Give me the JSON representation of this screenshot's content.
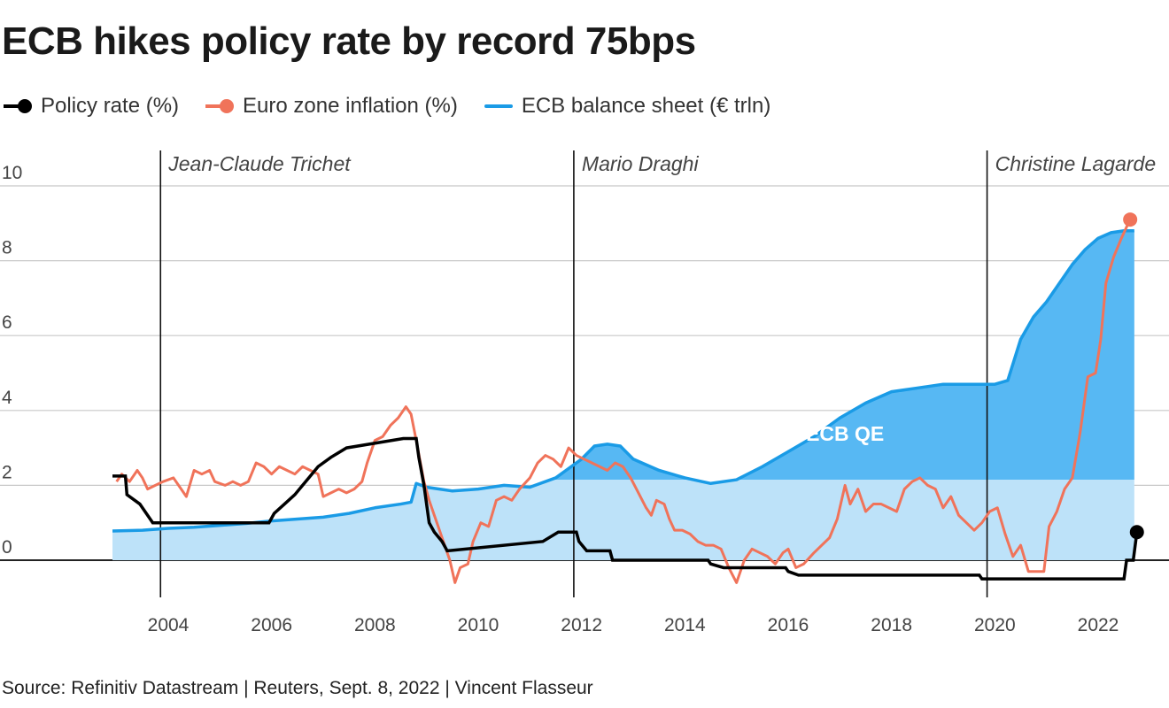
{
  "header": {
    "title": "ECB hikes policy rate by record 75bps"
  },
  "legend": [
    {
      "label": "Policy rate (%)",
      "color": "#000000",
      "icon": "dot-line-icon"
    },
    {
      "label": "Euro zone inflation (%)",
      "color": "#f0735a",
      "icon": "dot-line-icon"
    },
    {
      "label": "ECB balance sheet (€ trln)",
      "color": "#1a9be6",
      "icon": "line-icon"
    }
  ],
  "footer": {
    "source": "Source: Refinitiv Datastream | Reuters, Sept. 8, 2022 | Vincent Flasseur"
  },
  "chart_data": {
    "type": "line",
    "title": "ECB hikes policy rate by record 75bps",
    "xlim": [
      2002.9,
      2022.7
    ],
    "ylim": [
      -1,
      10
    ],
    "x_ticks": [
      2004,
      2006,
      2008,
      2010,
      2012,
      2014,
      2016,
      2018,
      2020,
      2022
    ],
    "y_ticks": [
      0,
      2,
      4,
      6,
      8,
      10
    ],
    "grid": true,
    "legend_position": "top-left",
    "annotations": {
      "presidents": [
        {
          "label": "Jean-Claude Trichet",
          "x": 2003.85
        },
        {
          "label": "Mario Draghi",
          "x": 2011.85
        },
        {
          "label": "Christine Lagarde",
          "x": 2019.85
        }
      ],
      "qe_label": "ECB QE",
      "qe_label_x": 2017.1,
      "qe_label_y": 3.0,
      "qe_threshold": 2.15
    },
    "series": [
      {
        "name": "Policy rate (%)",
        "color": "#000000",
        "type": "step",
        "points": [
          [
            2002.92,
            2.25
          ],
          [
            2003.17,
            2.25
          ],
          [
            2003.2,
            1.75
          ],
          [
            2003.45,
            1.5
          ],
          [
            2003.7,
            1.0
          ],
          [
            2005.95,
            1.0
          ],
          [
            2006.05,
            1.25
          ],
          [
            2006.25,
            1.5
          ],
          [
            2006.45,
            1.75
          ],
          [
            2006.6,
            2.0
          ],
          [
            2006.75,
            2.25
          ],
          [
            2006.9,
            2.5
          ],
          [
            2007.15,
            2.75
          ],
          [
            2007.45,
            3.0
          ],
          [
            2008.55,
            3.25
          ],
          [
            2008.8,
            3.25
          ],
          [
            2008.85,
            2.75
          ],
          [
            2008.95,
            2.0
          ],
          [
            2009.05,
            1.0
          ],
          [
            2009.15,
            0.75
          ],
          [
            2009.3,
            0.5
          ],
          [
            2009.4,
            0.25
          ],
          [
            2011.25,
            0.5
          ],
          [
            2011.55,
            0.75
          ],
          [
            2011.9,
            0.75
          ],
          [
            2011.95,
            0.5
          ],
          [
            2012.1,
            0.25
          ],
          [
            2012.55,
            0.25
          ],
          [
            2012.6,
            0.0
          ],
          [
            2014.45,
            0.0
          ],
          [
            2014.5,
            -0.1
          ],
          [
            2014.75,
            -0.2
          ],
          [
            2015.95,
            -0.2
          ],
          [
            2016.0,
            -0.3
          ],
          [
            2016.2,
            -0.4
          ],
          [
            2019.7,
            -0.4
          ],
          [
            2019.75,
            -0.5
          ],
          [
            2022.5,
            -0.5
          ],
          [
            2022.55,
            0.0
          ],
          [
            2022.68,
            0.0
          ],
          [
            2022.75,
            0.75
          ]
        ]
      },
      {
        "name": "Euro zone inflation (%)",
        "color": "#f0735a",
        "type": "line",
        "points": [
          [
            2003.0,
            2.1
          ],
          [
            2003.1,
            2.3
          ],
          [
            2003.25,
            2.1
          ],
          [
            2003.4,
            2.4
          ],
          [
            2003.5,
            2.2
          ],
          [
            2003.6,
            1.9
          ],
          [
            2003.75,
            2.0
          ],
          [
            2003.9,
            2.1
          ],
          [
            2004.1,
            2.2
          ],
          [
            2004.25,
            1.9
          ],
          [
            2004.35,
            1.7
          ],
          [
            2004.5,
            2.4
          ],
          [
            2004.65,
            2.3
          ],
          [
            2004.8,
            2.4
          ],
          [
            2004.9,
            2.1
          ],
          [
            2005.1,
            2.0
          ],
          [
            2005.25,
            2.1
          ],
          [
            2005.4,
            2.0
          ],
          [
            2005.55,
            2.1
          ],
          [
            2005.7,
            2.6
          ],
          [
            2005.85,
            2.5
          ],
          [
            2006.0,
            2.3
          ],
          [
            2006.15,
            2.5
          ],
          [
            2006.3,
            2.4
          ],
          [
            2006.45,
            2.3
          ],
          [
            2006.6,
            2.5
          ],
          [
            2006.75,
            2.4
          ],
          [
            2006.9,
            2.3
          ],
          [
            2007.0,
            1.7
          ],
          [
            2007.15,
            1.8
          ],
          [
            2007.3,
            1.9
          ],
          [
            2007.45,
            1.8
          ],
          [
            2007.6,
            1.9
          ],
          [
            2007.75,
            2.1
          ],
          [
            2007.85,
            2.6
          ],
          [
            2008.0,
            3.2
          ],
          [
            2008.15,
            3.3
          ],
          [
            2008.3,
            3.6
          ],
          [
            2008.45,
            3.8
          ],
          [
            2008.6,
            4.1
          ],
          [
            2008.7,
            3.9
          ],
          [
            2008.8,
            3.2
          ],
          [
            2008.95,
            2.1
          ],
          [
            2009.05,
            1.6
          ],
          [
            2009.15,
            1.2
          ],
          [
            2009.3,
            0.6
          ],
          [
            2009.45,
            0.0
          ],
          [
            2009.55,
            -0.6
          ],
          [
            2009.65,
            -0.2
          ],
          [
            2009.8,
            -0.1
          ],
          [
            2009.9,
            0.5
          ],
          [
            2010.05,
            1.0
          ],
          [
            2010.2,
            0.9
          ],
          [
            2010.35,
            1.6
          ],
          [
            2010.5,
            1.7
          ],
          [
            2010.65,
            1.6
          ],
          [
            2010.8,
            1.9
          ],
          [
            2011.0,
            2.2
          ],
          [
            2011.15,
            2.6
          ],
          [
            2011.3,
            2.8
          ],
          [
            2011.45,
            2.7
          ],
          [
            2011.6,
            2.5
          ],
          [
            2011.75,
            3.0
          ],
          [
            2011.9,
            2.8
          ],
          [
            2012.05,
            2.7
          ],
          [
            2012.2,
            2.6
          ],
          [
            2012.35,
            2.5
          ],
          [
            2012.5,
            2.4
          ],
          [
            2012.65,
            2.6
          ],
          [
            2012.8,
            2.5
          ],
          [
            2012.95,
            2.2
          ],
          [
            2013.1,
            1.8
          ],
          [
            2013.25,
            1.4
          ],
          [
            2013.35,
            1.2
          ],
          [
            2013.45,
            1.6
          ],
          [
            2013.6,
            1.5
          ],
          [
            2013.7,
            1.1
          ],
          [
            2013.8,
            0.8
          ],
          [
            2013.95,
            0.8
          ],
          [
            2014.1,
            0.7
          ],
          [
            2014.25,
            0.5
          ],
          [
            2014.4,
            0.4
          ],
          [
            2014.55,
            0.4
          ],
          [
            2014.7,
            0.3
          ],
          [
            2014.85,
            -0.2
          ],
          [
            2015.0,
            -0.6
          ],
          [
            2015.15,
            0.0
          ],
          [
            2015.3,
            0.3
          ],
          [
            2015.45,
            0.2
          ],
          [
            2015.6,
            0.1
          ],
          [
            2015.75,
            -0.1
          ],
          [
            2015.9,
            0.2
          ],
          [
            2016.0,
            0.3
          ],
          [
            2016.15,
            -0.2
          ],
          [
            2016.3,
            -0.1
          ],
          [
            2016.5,
            0.2
          ],
          [
            2016.65,
            0.4
          ],
          [
            2016.8,
            0.6
          ],
          [
            2016.95,
            1.1
          ],
          [
            2017.1,
            2.0
          ],
          [
            2017.2,
            1.5
          ],
          [
            2017.35,
            1.9
          ],
          [
            2017.5,
            1.3
          ],
          [
            2017.65,
            1.5
          ],
          [
            2017.8,
            1.5
          ],
          [
            2017.95,
            1.4
          ],
          [
            2018.1,
            1.3
          ],
          [
            2018.25,
            1.9
          ],
          [
            2018.4,
            2.1
          ],
          [
            2018.55,
            2.2
          ],
          [
            2018.7,
            2.0
          ],
          [
            2018.85,
            1.9
          ],
          [
            2019.0,
            1.4
          ],
          [
            2019.15,
            1.7
          ],
          [
            2019.3,
            1.2
          ],
          [
            2019.45,
            1.0
          ],
          [
            2019.6,
            0.8
          ],
          [
            2019.75,
            1.0
          ],
          [
            2019.9,
            1.3
          ],
          [
            2020.05,
            1.4
          ],
          [
            2020.2,
            0.7
          ],
          [
            2020.35,
            0.1
          ],
          [
            2020.5,
            0.4
          ],
          [
            2020.65,
            -0.3
          ],
          [
            2020.8,
            -0.3
          ],
          [
            2020.95,
            -0.3
          ],
          [
            2021.05,
            0.9
          ],
          [
            2021.2,
            1.3
          ],
          [
            2021.35,
            1.9
          ],
          [
            2021.5,
            2.2
          ],
          [
            2021.65,
            3.4
          ],
          [
            2021.8,
            4.9
          ],
          [
            2021.95,
            5.0
          ],
          [
            2022.05,
            5.9
          ],
          [
            2022.15,
            7.4
          ],
          [
            2022.3,
            8.1
          ],
          [
            2022.45,
            8.6
          ],
          [
            2022.55,
            8.9
          ],
          [
            2022.62,
            9.1
          ]
        ]
      },
      {
        "name": "ECB balance sheet (€ trln)",
        "color": "#1a9be6",
        "type": "area",
        "points": [
          [
            2002.92,
            0.78
          ],
          [
            2003.5,
            0.8
          ],
          [
            2004.0,
            0.85
          ],
          [
            2004.5,
            0.88
          ],
          [
            2005.0,
            0.93
          ],
          [
            2005.5,
            0.98
          ],
          [
            2006.0,
            1.05
          ],
          [
            2006.5,
            1.1
          ],
          [
            2007.0,
            1.15
          ],
          [
            2007.5,
            1.25
          ],
          [
            2008.0,
            1.4
          ],
          [
            2008.5,
            1.5
          ],
          [
            2008.7,
            1.55
          ],
          [
            2008.8,
            2.05
          ],
          [
            2009.0,
            1.95
          ],
          [
            2009.5,
            1.85
          ],
          [
            2010.0,
            1.9
          ],
          [
            2010.5,
            2.0
          ],
          [
            2011.0,
            1.95
          ],
          [
            2011.5,
            2.2
          ],
          [
            2011.8,
            2.5
          ],
          [
            2012.0,
            2.7
          ],
          [
            2012.25,
            3.05
          ],
          [
            2012.5,
            3.1
          ],
          [
            2012.75,
            3.05
          ],
          [
            2013.0,
            2.7
          ],
          [
            2013.5,
            2.4
          ],
          [
            2014.0,
            2.2
          ],
          [
            2014.5,
            2.05
          ],
          [
            2015.0,
            2.15
          ],
          [
            2015.5,
            2.5
          ],
          [
            2016.0,
            2.9
          ],
          [
            2016.5,
            3.3
          ],
          [
            2017.0,
            3.8
          ],
          [
            2017.5,
            4.2
          ],
          [
            2018.0,
            4.5
          ],
          [
            2018.5,
            4.6
          ],
          [
            2019.0,
            4.7
          ],
          [
            2019.5,
            4.7
          ],
          [
            2020.0,
            4.7
          ],
          [
            2020.25,
            4.8
          ],
          [
            2020.5,
            5.9
          ],
          [
            2020.75,
            6.5
          ],
          [
            2021.0,
            6.9
          ],
          [
            2021.25,
            7.4
          ],
          [
            2021.5,
            7.9
          ],
          [
            2021.75,
            8.3
          ],
          [
            2022.0,
            8.6
          ],
          [
            2022.25,
            8.75
          ],
          [
            2022.5,
            8.8
          ],
          [
            2022.7,
            8.8
          ]
        ]
      }
    ]
  }
}
